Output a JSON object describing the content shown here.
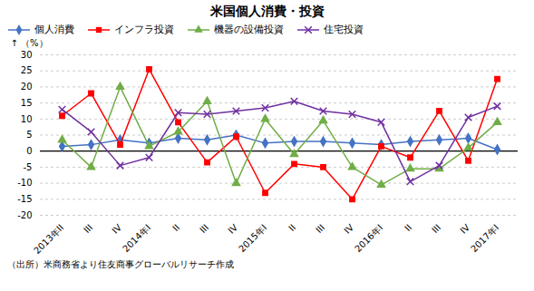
{
  "chart_data": {
    "type": "line",
    "title": "米国個人消費・投資",
    "y_label": "（%）",
    "source": "（出所）米商務省より住友商事グローバルリサーチ作成",
    "categories": [
      "2013年II",
      "III",
      "IV",
      "2014年I",
      "II",
      "III",
      "IV",
      "2015年I",
      "II",
      "III",
      "IV",
      "2016年I",
      "II",
      "III",
      "IV",
      "2017年I"
    ],
    "series": [
      {
        "name": "個人消費",
        "color": "#4472C4",
        "marker": "diamond",
        "values": [
          1.5,
          2.0,
          3.5,
          2.5,
          4.0,
          3.5,
          5.0,
          2.5,
          3.0,
          3.0,
          2.5,
          2.0,
          3.0,
          3.5,
          4.0,
          0.5
        ]
      },
      {
        "name": "インフラ投資",
        "color": "#FF0000",
        "marker": "square",
        "values": [
          11.0,
          18.0,
          2.0,
          25.5,
          9.0,
          -3.5,
          4.5,
          -13.0,
          -4.0,
          -5.0,
          -15.0,
          1.5,
          -2.0,
          12.5,
          -3.0,
          22.5
        ]
      },
      {
        "name": "機器の設備投資",
        "color": "#70AD47",
        "marker": "triangle",
        "values": [
          3.5,
          -5.0,
          20.0,
          1.5,
          6.0,
          15.5,
          -10.0,
          10.0,
          -1.0,
          9.5,
          -5.0,
          -10.5,
          -5.5,
          -5.5,
          1.0,
          9.0
        ]
      },
      {
        "name": "住宅投資",
        "color": "#7030A0",
        "marker": "x",
        "values": [
          13.0,
          6.0,
          -4.5,
          -2.0,
          12.0,
          11.5,
          12.5,
          13.5,
          15.5,
          12.5,
          11.5,
          9.0,
          -9.5,
          -4.5,
          10.5,
          14.0
        ]
      }
    ],
    "ylim": [
      -20,
      30
    ],
    "yticks": [
      -20,
      -15,
      -10,
      -5,
      0,
      5,
      10,
      15,
      20,
      25,
      30
    ],
    "grid": true,
    "legend": "top-left"
  }
}
